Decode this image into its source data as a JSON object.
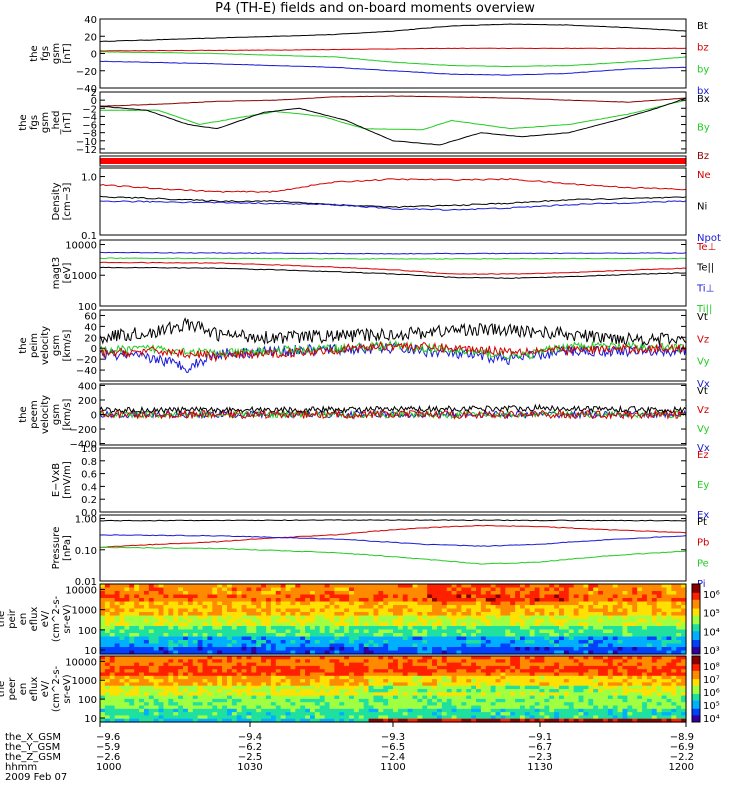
{
  "title": "P4 (TH-E) fields and on-board moments overview",
  "colors": {
    "black": "#000000",
    "red": "#d40000",
    "green": "#22cc22",
    "blue": "#1a1ad6",
    "darkred": "#8b0000"
  },
  "chart_data": [
    {
      "type": "line",
      "name": "fgs_gsm",
      "ylabel_lines": [
        "the",
        "fgs",
        "gsm",
        "[nT]"
      ],
      "ylim": [
        -40,
        40
      ],
      "ticks": [
        {
          "v": 40,
          "t": "40"
        },
        {
          "v": 20,
          "t": "20"
        },
        {
          "v": 0,
          "t": "0"
        },
        {
          "v": -20,
          "t": "−20"
        },
        {
          "v": -40,
          "t": "−40"
        }
      ],
      "legend": [
        {
          "t": "Bt",
          "c": "black"
        },
        {
          "t": "bz",
          "c": "red"
        },
        {
          "t": "by",
          "c": "green"
        },
        {
          "t": "bx",
          "c": "blue"
        }
      ],
      "series": [
        {
          "name": "Bt",
          "color": "black",
          "x": [
            0,
            0.2,
            0.4,
            0.5,
            0.6,
            0.7,
            0.8,
            0.9,
            1
          ],
          "y": [
            14,
            18,
            22,
            26,
            32,
            34,
            33,
            30,
            26
          ]
        },
        {
          "name": "bz",
          "color": "red",
          "x": [
            0,
            0.3,
            0.6,
            1
          ],
          "y": [
            3,
            4,
            6,
            6
          ]
        },
        {
          "name": "by",
          "color": "green",
          "x": [
            0,
            0.2,
            0.4,
            0.5,
            0.6,
            0.7,
            0.8,
            0.9,
            1
          ],
          "y": [
            2,
            0,
            -4,
            -10,
            -14,
            -15,
            -14,
            -10,
            -4
          ]
        },
        {
          "name": "bx",
          "color": "blue",
          "x": [
            0,
            0.2,
            0.4,
            0.5,
            0.6,
            0.7,
            0.8,
            0.9,
            1
          ],
          "y": [
            -9,
            -12,
            -16,
            -20,
            -24,
            -25,
            -23,
            -18,
            -16
          ]
        }
      ]
    },
    {
      "type": "line",
      "name": "fgs_gsm_hf",
      "ylabel_lines": [
        "the",
        "fgs",
        "gsm",
        "_hed",
        "[nT]"
      ],
      "ylim": [
        -13,
        2
      ],
      "ticks": [
        {
          "v": 2,
          "t": "2"
        },
        {
          "v": 0,
          "t": "0"
        },
        {
          "v": -2,
          "t": "−2"
        },
        {
          "v": -4,
          "t": "−4"
        },
        {
          "v": -6,
          "t": "−6"
        },
        {
          "v": -8,
          "t": "−8"
        },
        {
          "v": -10,
          "t": "−10"
        },
        {
          "v": -12,
          "t": "−12"
        }
      ],
      "legend": [
        {
          "t": "Bx",
          "c": "black"
        },
        {
          "t": "By",
          "c": "green"
        },
        {
          "t": "Bz",
          "c": "darkred"
        }
      ],
      "series": [
        {
          "name": "Bz",
          "color": "darkred",
          "x": [
            0,
            0.1,
            0.2,
            0.3,
            0.4,
            0.5,
            0.6,
            0.7,
            0.8,
            0.9,
            1
          ],
          "y": [
            -1.5,
            -1,
            -0.3,
            0,
            0.8,
            1,
            0.8,
            0.5,
            0,
            -0.5,
            0.5
          ]
        },
        {
          "name": "By",
          "color": "green",
          "x": [
            0,
            0.1,
            0.17,
            0.25,
            0.3,
            0.38,
            0.45,
            0.55,
            0.6,
            0.7,
            0.8,
            0.9,
            1
          ],
          "y": [
            -2.5,
            -2.5,
            -6,
            -4,
            -2.8,
            -4,
            -7,
            -7.3,
            -5,
            -7,
            -6,
            -3.5,
            0
          ]
        },
        {
          "name": "Bx",
          "color": "black",
          "x": [
            0,
            0.08,
            0.15,
            0.2,
            0.28,
            0.34,
            0.42,
            0.5,
            0.58,
            0.65,
            0.72,
            0.8,
            0.88,
            0.95,
            1
          ],
          "y": [
            -1.5,
            -2.5,
            -6,
            -7,
            -3,
            -2,
            -5,
            -10,
            -11,
            -8,
            -9,
            -8,
            -5,
            -2,
            0.5
          ]
        }
      ]
    },
    {
      "type": "line",
      "name": "density",
      "ylabel_lines": [
        "Density",
        "[cm−3]"
      ],
      "log": true,
      "ylim": [
        0.1,
        1.4
      ],
      "ticks": [
        {
          "v": 1.0,
          "t": "1.0"
        },
        {
          "v": 0.1,
          "t": "0.1"
        }
      ],
      "legend": [
        {
          "t": "Ne",
          "c": "red"
        },
        {
          "t": "Ni",
          "c": "black"
        },
        {
          "t": "Npot",
          "c": "blue"
        }
      ],
      "series": [
        {
          "name": "Ne",
          "color": "red",
          "x": [
            0,
            0.1,
            0.2,
            0.3,
            0.4,
            0.5,
            0.6,
            0.7,
            0.8,
            0.9,
            1
          ],
          "y": [
            0.72,
            0.62,
            0.55,
            0.55,
            0.8,
            0.9,
            0.88,
            0.9,
            0.75,
            0.65,
            0.6
          ]
        },
        {
          "name": "Ni",
          "color": "black",
          "x": [
            0,
            0.1,
            0.2,
            0.3,
            0.4,
            0.5,
            0.6,
            0.7,
            0.8,
            0.9,
            1
          ],
          "y": [
            0.45,
            0.42,
            0.38,
            0.38,
            0.33,
            0.3,
            0.32,
            0.35,
            0.4,
            0.42,
            0.44
          ]
        },
        {
          "name": "Npot",
          "color": "blue",
          "x": [
            0,
            0.2,
            0.4,
            0.5,
            0.6,
            0.7,
            0.8,
            1
          ],
          "y": [
            0.38,
            0.36,
            0.33,
            0.28,
            0.27,
            0.29,
            0.33,
            0.38
          ]
        }
      ]
    },
    {
      "type": "line",
      "name": "temperature",
      "ylabel_lines": [
        "magt3",
        "[eV]"
      ],
      "log": true,
      "ylim": [
        100,
        14000
      ],
      "ticks": [
        {
          "v": 10000,
          "t": "10000"
        },
        {
          "v": 1000,
          "t": "1000"
        },
        {
          "v": 100,
          "t": "100"
        }
      ],
      "legend": [
        {
          "t": "Te⊥",
          "c": "red"
        },
        {
          "t": "Te||",
          "c": "black"
        },
        {
          "t": "Ti⊥",
          "c": "blue"
        },
        {
          "t": "Ti||",
          "c": "green"
        }
      ],
      "series": [
        {
          "name": "Ti⊥",
          "color": "blue",
          "x": [
            0,
            0.5,
            1
          ],
          "y": [
            5500,
            5000,
            5300
          ]
        },
        {
          "name": "Ti||",
          "color": "green",
          "x": [
            0,
            0.5,
            1
          ],
          "y": [
            3600,
            3400,
            3500
          ]
        },
        {
          "name": "Te⊥",
          "color": "red",
          "x": [
            0,
            0.2,
            0.5,
            0.6,
            0.7,
            0.8,
            1
          ],
          "y": [
            2600,
            2500,
            1500,
            1100,
            1100,
            1200,
            1700
          ]
        },
        {
          "name": "Te||",
          "color": "black",
          "x": [
            0,
            0.2,
            0.5,
            0.6,
            0.7,
            0.8,
            1
          ],
          "y": [
            1800,
            1700,
            1100,
            850,
            800,
            900,
            1200
          ]
        }
      ]
    },
    {
      "type": "line",
      "name": "peim_velocity",
      "ylabel_lines": [
        "the",
        "peim",
        "velocity",
        "gsm",
        "[km/s]"
      ],
      "ylim": [
        -60,
        70
      ],
      "ticks": [
        {
          "v": 60,
          "t": "60"
        },
        {
          "v": 40,
          "t": "40"
        },
        {
          "v": 20,
          "t": "20"
        },
        {
          "v": 0,
          "t": "0"
        },
        {
          "v": -20,
          "t": "−20"
        },
        {
          "v": -40,
          "t": "−40"
        }
      ],
      "legend": [
        {
          "t": "Vt",
          "c": "black"
        },
        {
          "t": "Vz",
          "c": "red"
        },
        {
          "t": "Vy",
          "c": "green"
        },
        {
          "t": "Vx",
          "c": "blue"
        }
      ],
      "series": [
        {
          "name": "Vx",
          "color": "blue",
          "x": [
            0,
            0.1,
            0.15,
            0.2,
            0.3,
            0.5,
            0.7,
            0.8,
            1
          ],
          "y": [
            -10,
            -20,
            -35,
            -10,
            -5,
            0,
            -20,
            -5,
            -5
          ],
          "noise": 10
        },
        {
          "name": "Vy",
          "color": "green",
          "x": [
            0,
            0.1,
            0.2,
            0.5,
            0.72,
            0.8,
            1
          ],
          "y": [
            -5,
            0,
            -10,
            5,
            -15,
            5,
            0
          ],
          "noise": 8
        },
        {
          "name": "Vz",
          "color": "red",
          "x": [
            0,
            0.1,
            0.2,
            0.3,
            0.5,
            0.7,
            1
          ],
          "y": [
            -10,
            -5,
            -15,
            -10,
            5,
            -5,
            0
          ],
          "noise": 8
        },
        {
          "name": "Vt",
          "color": "black",
          "x": [
            0,
            0.1,
            0.15,
            0.2,
            0.3,
            0.5,
            0.63,
            0.75,
            0.85,
            1
          ],
          "y": [
            20,
            30,
            45,
            25,
            20,
            25,
            35,
            30,
            20,
            15
          ],
          "noise": 12
        }
      ]
    },
    {
      "type": "line",
      "name": "peem_velocity",
      "ylabel_lines": [
        "the",
        "peem",
        "velocity",
        "gsm",
        "[km/s]"
      ],
      "ylim": [
        -420,
        420
      ],
      "ticks": [
        {
          "v": 400,
          "t": "400"
        },
        {
          "v": 200,
          "t": "200"
        },
        {
          "v": 0,
          "t": "0"
        },
        {
          "v": -200,
          "t": "−200"
        },
        {
          "v": -400,
          "t": "−400"
        }
      ],
      "legend": [
        {
          "t": "Vt",
          "c": "black"
        },
        {
          "t": "Vz",
          "c": "red"
        },
        {
          "t": "Vy",
          "c": "green"
        },
        {
          "t": "Vx",
          "c": "blue"
        }
      ],
      "series": [
        {
          "name": "Vx",
          "color": "blue",
          "x": [
            0,
            1
          ],
          "y": [
            0,
            0
          ],
          "noise": 45
        },
        {
          "name": "Vy",
          "color": "green",
          "x": [
            0,
            1
          ],
          "y": [
            0,
            0
          ],
          "noise": 45
        },
        {
          "name": "Vz",
          "color": "red",
          "x": [
            0,
            1
          ],
          "y": [
            0,
            0
          ],
          "noise": 55
        },
        {
          "name": "Vt",
          "color": "black",
          "x": [
            0,
            0.5,
            0.75,
            1
          ],
          "y": [
            60,
            70,
            90,
            60
          ],
          "noise": 40
        }
      ]
    },
    {
      "type": "line",
      "name": "efield",
      "ylabel_lines": [
        "E−VxB",
        "[mV/m]"
      ],
      "ylim": [
        0,
        1
      ],
      "ticks": [
        {
          "v": 1.0,
          "t": "1.0"
        },
        {
          "v": 0.8,
          "t": "0.8"
        },
        {
          "v": 0.6,
          "t": "0.6"
        },
        {
          "v": 0.4,
          "t": "0.4"
        },
        {
          "v": 0.2,
          "t": "0.2"
        },
        {
          "v": 0.0,
          "t": "0.0"
        }
      ],
      "legend": [
        {
          "t": "Ez",
          "c": "red"
        },
        {
          "t": "Ey",
          "c": "green"
        },
        {
          "t": "Ex",
          "c": "blue"
        }
      ],
      "series": []
    },
    {
      "type": "line",
      "name": "pressure",
      "ylabel_lines": [
        "Pressure",
        "[nPa]"
      ],
      "log": true,
      "ylim": [
        0.01,
        1.3
      ],
      "ticks": [
        {
          "v": 1.0,
          "t": "1.00"
        },
        {
          "v": 0.1,
          "t": "0.10"
        },
        {
          "v": 0.01,
          "t": "0.01"
        }
      ],
      "legend": [
        {
          "t": "Pt",
          "c": "black"
        },
        {
          "t": "Pb",
          "c": "red"
        },
        {
          "t": "Pe",
          "c": "green"
        },
        {
          "t": "Pi",
          "c": "blue"
        }
      ],
      "series": [
        {
          "name": "Pt",
          "color": "black",
          "x": [
            0,
            0.5,
            1
          ],
          "y": [
            0.85,
            0.9,
            0.85
          ]
        },
        {
          "name": "Pb",
          "color": "red",
          "x": [
            0,
            0.2,
            0.4,
            0.55,
            0.65,
            0.75,
            0.85,
            1
          ],
          "y": [
            0.12,
            0.18,
            0.3,
            0.5,
            0.6,
            0.55,
            0.45,
            0.35
          ]
        },
        {
          "name": "Pi",
          "color": "blue",
          "x": [
            0,
            0.2,
            0.4,
            0.55,
            0.65,
            0.75,
            0.85,
            1
          ],
          "y": [
            0.3,
            0.28,
            0.22,
            0.15,
            0.13,
            0.15,
            0.2,
            0.28
          ]
        },
        {
          "name": "Pe",
          "color": "green",
          "x": [
            0,
            0.2,
            0.4,
            0.55,
            0.65,
            0.75,
            0.85,
            1
          ],
          "y": [
            0.12,
            0.11,
            0.08,
            0.05,
            0.035,
            0.04,
            0.06,
            0.09
          ]
        }
      ]
    },
    {
      "type": "heatmap",
      "name": "peir_eflux",
      "ylabel_lines": [
        "the",
        "peir",
        "en",
        "eflux",
        "eV/",
        "(cm^2-s-",
        "sr-eV)"
      ],
      "ticks": [
        {
          "v": 10000,
          "t": "10000"
        },
        {
          "v": 1000,
          "t": "1000"
        },
        {
          "v": 100,
          "t": "100"
        },
        {
          "v": 10,
          "t": "10"
        }
      ],
      "colorbar": {
        "ticks": [
          "10⁶",
          "10⁵",
          "10⁴",
          "10³"
        ]
      }
    },
    {
      "type": "heatmap",
      "name": "peer_eflux",
      "ylabel_lines": [
        "the",
        "peer",
        "en",
        "eflux",
        "eV/",
        "(cm^2-s-",
        "sr-eV)"
      ],
      "ticks": [
        {
          "v": 10000,
          "t": "10000"
        },
        {
          "v": 1000,
          "t": "1000"
        },
        {
          "v": 100,
          "t": "100"
        },
        {
          "v": 10,
          "t": "10"
        }
      ],
      "colorbar": {
        "ticks": [
          "10⁸",
          "10⁷",
          "10⁶",
          "10⁵",
          "10⁴"
        ]
      }
    }
  ],
  "x_axis": {
    "labels": [
      "the_X_GSM",
      "the_Y_GSM",
      "the_Z_GSM",
      "hhmm",
      "2009 Feb 07"
    ],
    "columns": [
      [
        "−9.6",
        "−5.9",
        "−2.6",
        "1000"
      ],
      [
        "−9.4",
        "−6.2",
        "−2.5",
        "1030"
      ],
      [
        "−9.3",
        "−6.5",
        "−2.4",
        "1100"
      ],
      [
        "−9.1",
        "−6.7",
        "−2.3",
        "1130"
      ],
      [
        "−8.9",
        "−6.9",
        "−2.2",
        "1200"
      ]
    ]
  }
}
